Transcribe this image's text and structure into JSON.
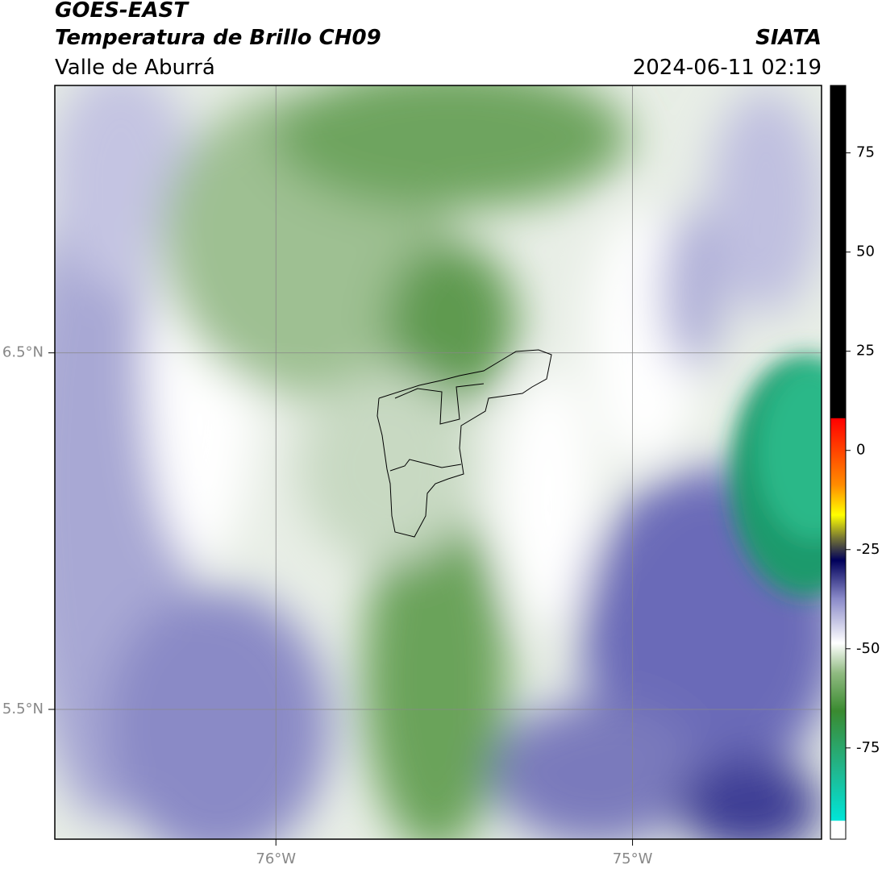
{
  "header": {
    "title": "GOES-EAST",
    "subtitle": "Temperatura de Brillo CH09",
    "region": "Valle de Aburrá",
    "source": "SIATA",
    "datetime": "2024-06-11 02:19"
  },
  "map": {
    "latlim": [
      5.136,
      7.25
    ],
    "lonlim": [
      -76.62,
      -74.47
    ],
    "grid": true,
    "lat_ticks": [
      {
        "value": 6.5,
        "label": "6.5°N"
      },
      {
        "value": 5.5,
        "label": "5.5°N"
      }
    ],
    "lon_ticks": [
      {
        "value": -76,
        "label": "76°W"
      },
      {
        "value": -75,
        "label": "75°W"
      }
    ]
  },
  "colorbar": {
    "lim": [
      -98,
      92
    ],
    "ticks": [
      75,
      50,
      25,
      0,
      -25,
      -50,
      -75
    ]
  }
}
